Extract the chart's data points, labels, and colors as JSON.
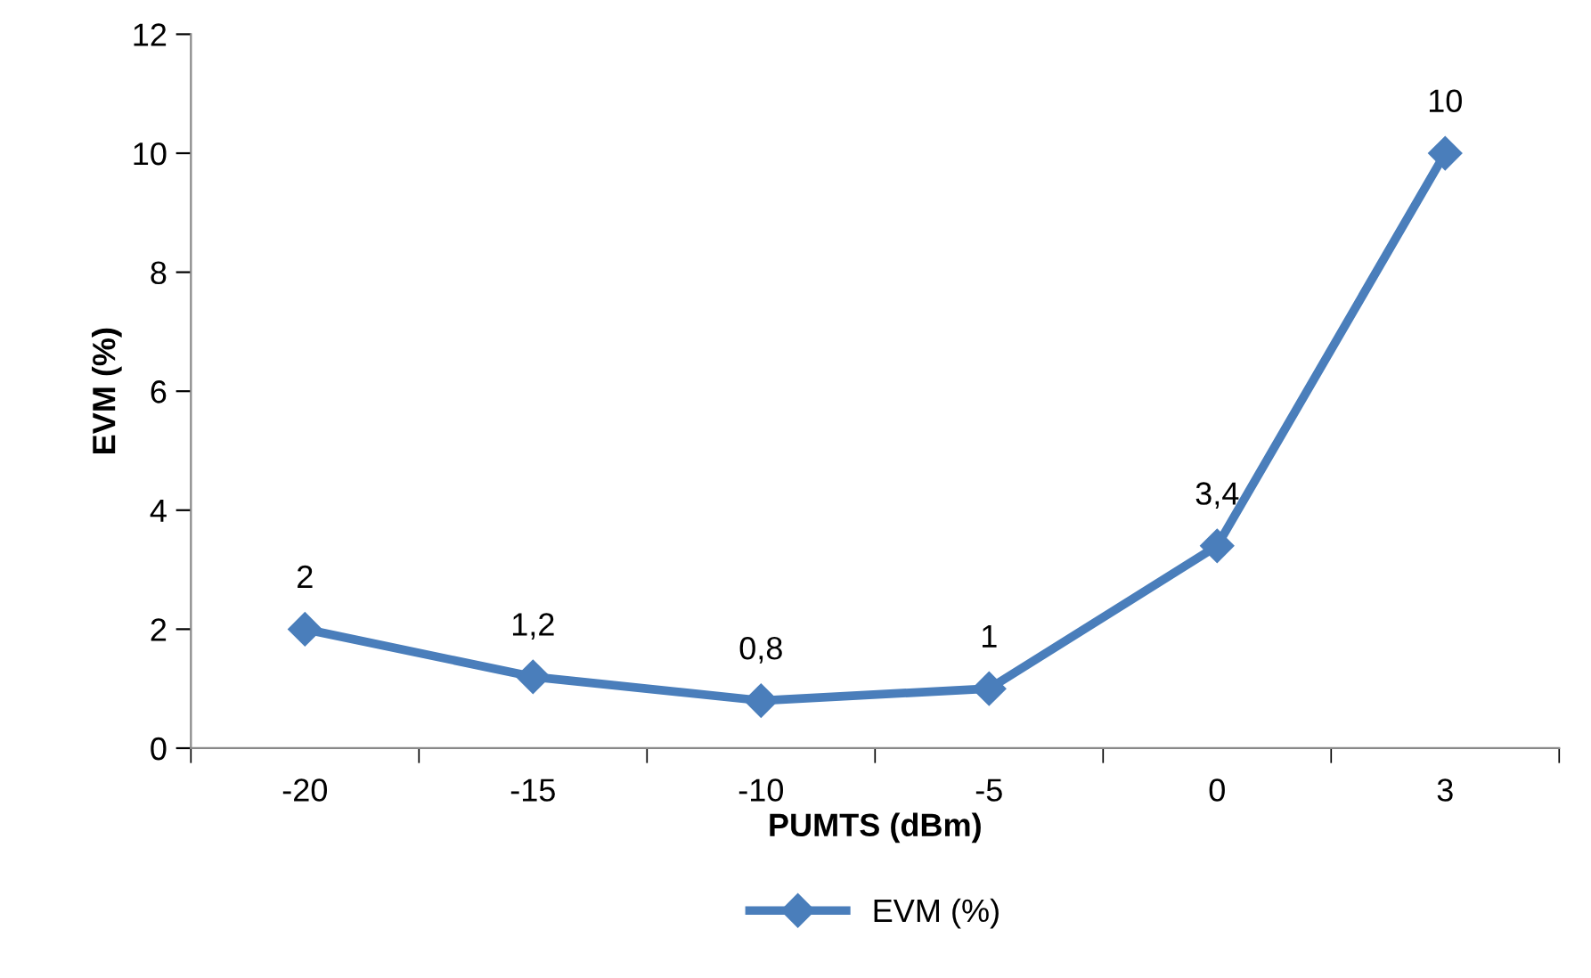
{
  "chart_data": {
    "type": "line",
    "xlabel": "PUMTS (dBm)",
    "ylabel": "EVM (%)",
    "categories": [
      "-20",
      "-15",
      "-10",
      "-5",
      "0",
      "3"
    ],
    "series": [
      {
        "name": "EVM (%)",
        "color": "#4a7ebb",
        "values": [
          2,
          1.2,
          0.8,
          1,
          3.4,
          10
        ],
        "value_labels": [
          "2",
          "1,2",
          "0,8",
          "1",
          "3,4",
          "10"
        ]
      }
    ],
    "ylim": [
      0,
      12
    ],
    "yticks": [
      0,
      2,
      4,
      6,
      8,
      10,
      12
    ],
    "grid": false,
    "legend": "bottom",
    "marker": "diamond",
    "line_style": "solid"
  }
}
